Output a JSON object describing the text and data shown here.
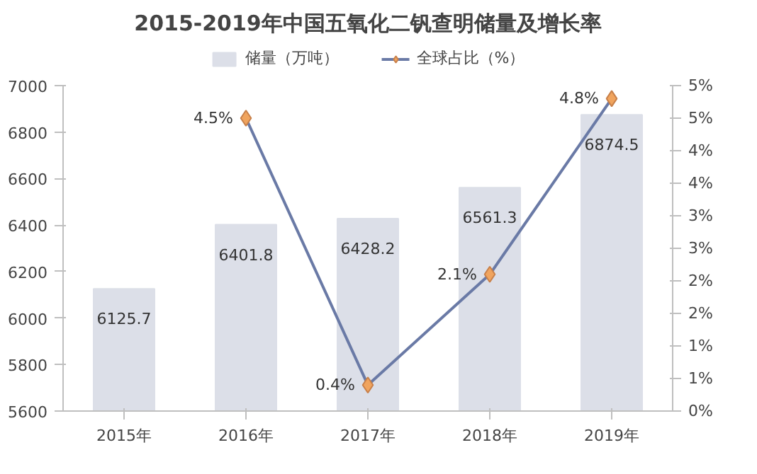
{
  "chart_data": {
    "type": "bar",
    "title": "2015-2019年中国五氧化二钒查明储量及增长率",
    "categories": [
      "2015年",
      "2016年",
      "2017年",
      "2018年",
      "2019年"
    ],
    "series": [
      {
        "name": "储量（万吨）",
        "color": "#dcdfe8",
        "values": [
          6125.7,
          6401.8,
          6428.2,
          6561.3,
          6874.5
        ],
        "value_labels": [
          "6125.7",
          "6401.8",
          "6428.2",
          "6561.3",
          "6874.5"
        ]
      },
      {
        "name": "全球占比（%）",
        "type": "line",
        "axis": "y2",
        "color": "#6a7aa6",
        "marker": "diamond",
        "values": [
          null,
          4.5,
          0.4,
          2.1,
          4.8
        ],
        "value_labels": [
          null,
          "4.5%",
          "0.4%",
          "2.1%",
          "4.8%"
        ]
      }
    ],
    "ylim": [
      5600,
      7000
    ],
    "yticks": [
      5600,
      5800,
      6000,
      6200,
      6400,
      6600,
      6800,
      7000
    ],
    "y2lim": [
      0,
      5
    ],
    "y2ticks": [
      {
        "value": 0,
        "label": "0%"
      },
      {
        "value": 0.5,
        "label": "1%"
      },
      {
        "value": 1,
        "label": "1%"
      },
      {
        "value": 1.5,
        "label": "2%"
      },
      {
        "value": 2,
        "label": "2%"
      },
      {
        "value": 2.5,
        "label": "3%"
      },
      {
        "value": 3,
        "label": "3%"
      },
      {
        "value": 3.5,
        "label": "4%"
      },
      {
        "value": 4,
        "label": "4%"
      },
      {
        "value": 4.5,
        "label": "5%"
      },
      {
        "value": 5,
        "label": "5%"
      }
    ],
    "grid": false,
    "legend": "top"
  }
}
